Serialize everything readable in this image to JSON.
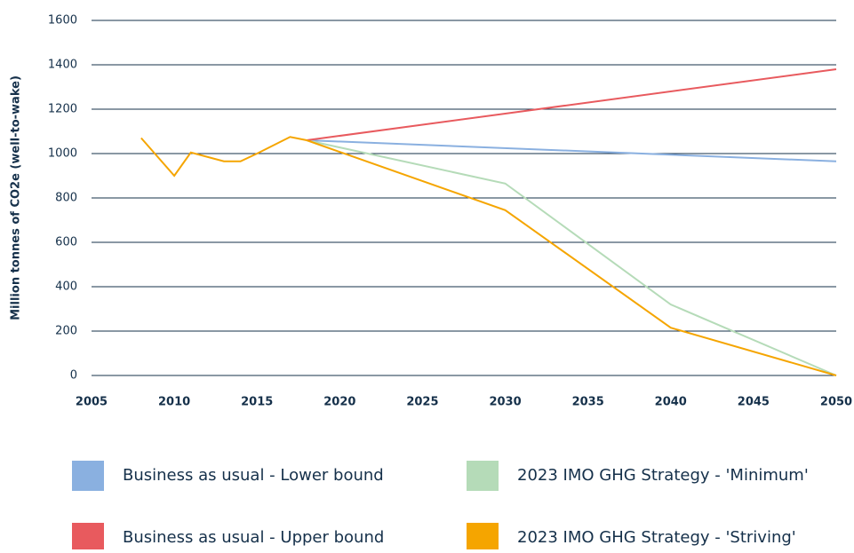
{
  "chart_data": {
    "type": "line",
    "y_label": "Million tonnes of CO2e (well-to-wake)",
    "xlim": [
      2005,
      2050
    ],
    "xticks": [
      2005,
      2010,
      2015,
      2020,
      2025,
      2030,
      2035,
      2040,
      2045,
      2050
    ],
    "ylim": [
      0,
      1600
    ],
    "yticks": [
      0,
      200,
      400,
      600,
      800,
      1000,
      1200,
      1400,
      1600
    ],
    "grid": true,
    "series": [
      {
        "name": "Business as usual - Lower bound",
        "color": "#8ab0e0",
        "x": [
          2018,
          2050
        ],
        "values": [
          1060,
          965
        ]
      },
      {
        "name": "2023 IMO GHG Strategy - 'Minimum'",
        "color": "#b5dbb8",
        "x": [
          2018,
          2030,
          2040,
          2050
        ],
        "values": [
          1060,
          865,
          320,
          0
        ]
      },
      {
        "name": "Business as usual - Upper bound",
        "color": "#e85a5e",
        "x": [
          2018,
          2050
        ],
        "values": [
          1060,
          1380
        ]
      },
      {
        "name": "2023 IMO GHG Strategy - 'Striving'",
        "color": "#f5a500",
        "x": [
          2008,
          2010,
          2011,
          2013,
          2014,
          2015,
          2017,
          2018,
          2030,
          2040,
          2050
        ],
        "values": [
          1070,
          900,
          1005,
          965,
          965,
          1000,
          1075,
          1060,
          745,
          215,
          0
        ]
      }
    ]
  }
}
